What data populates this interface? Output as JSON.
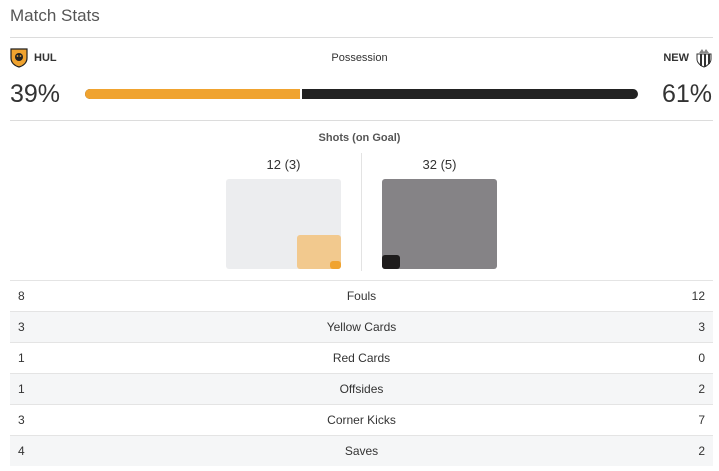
{
  "title": "Match Stats",
  "home": {
    "abbr": "HUL",
    "possession": "39%",
    "shots": "12 (3)",
    "color": "#f0a32f"
  },
  "away": {
    "abbr": "NEW",
    "possession": "61%",
    "shots": "32 (5)",
    "color": "#222222"
  },
  "possession": {
    "label": "Possession",
    "home_fraction": 0.39
  },
  "shots": {
    "label": "Shots (on Goal)"
  },
  "stats": [
    {
      "label": "Fouls",
      "home": "8",
      "away": "12"
    },
    {
      "label": "Yellow Cards",
      "home": "3",
      "away": "3"
    },
    {
      "label": "Red Cards",
      "home": "1",
      "away": "0"
    },
    {
      "label": "Offsides",
      "home": "1",
      "away": "2"
    },
    {
      "label": "Corner Kicks",
      "home": "3",
      "away": "7"
    },
    {
      "label": "Saves",
      "home": "4",
      "away": "2"
    }
  ]
}
